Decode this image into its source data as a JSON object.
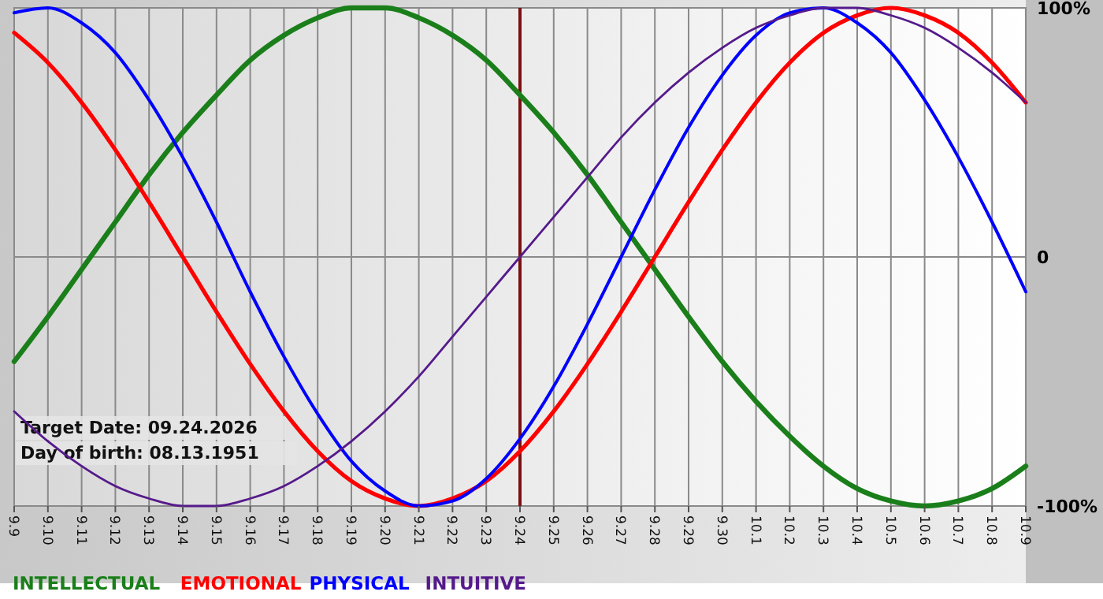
{
  "chart_data": {
    "type": "line",
    "categories": [
      "9.9",
      "9.10",
      "9.11",
      "9.12",
      "9.13",
      "9.14",
      "9.15",
      "9.16",
      "9.17",
      "9.18",
      "9.19",
      "9.20",
      "9.21",
      "9.22",
      "9.23",
      "9.24",
      "9.25",
      "9.26",
      "9.27",
      "9.28",
      "9.29",
      "9.30",
      "10.1",
      "10.2",
      "10.3",
      "10.4",
      "10.5",
      "10.6",
      "10.7",
      "10.8",
      "10.9"
    ],
    "series": [
      {
        "name": "INTELLECTUAL",
        "color": "#1a7f1a",
        "values": [
          -42,
          -24,
          -5,
          14,
          33,
          50,
          65,
          79,
          89,
          96,
          100,
          100,
          96,
          89,
          79,
          65,
          50,
          33,
          14,
          -5,
          -24,
          -42,
          -58,
          -72,
          -84,
          -93,
          -98,
          -100,
          -98,
          -93,
          -84
        ]
      },
      {
        "name": "EMOTIONAL",
        "color": "#ff0000",
        "values": [
          90,
          78,
          62,
          43,
          22,
          0,
          -22,
          -43,
          -62,
          -78,
          -90,
          -97,
          -100,
          -97,
          -90,
          -78,
          -62,
          -43,
          -22,
          0,
          22,
          43,
          62,
          78,
          90,
          97,
          100,
          97,
          90,
          78,
          62
        ]
      },
      {
        "name": "PHYSICAL",
        "color": "#0000ff",
        "values": [
          98,
          100,
          94,
          82,
          63,
          40,
          14,
          -14,
          -40,
          -63,
          -82,
          -94,
          -100,
          -98,
          -89,
          -73,
          -52,
          -27,
          0,
          27,
          52,
          73,
          89,
          98,
          100,
          94,
          82,
          63,
          40,
          14,
          -14
        ]
      },
      {
        "name": "INTUITIVE",
        "color": "#551a8b",
        "values": [
          -62,
          -74,
          -84,
          -92,
          -97,
          -100,
          -100,
          -97,
          -92,
          -84,
          -74,
          -62,
          -48,
          -32,
          -16,
          0,
          16,
          32,
          48,
          62,
          74,
          84,
          92,
          97,
          100,
          100,
          97,
          92,
          84,
          74,
          62
        ]
      }
    ],
    "ylim": [
      -100,
      100
    ],
    "yticks": [
      {
        "value": 100,
        "label": "100%"
      },
      0,
      {
        "value": -100,
        "label": "-100%"
      }
    ],
    "grid": true,
    "legend": "bottom left",
    "marker": "none",
    "line_style": "solid",
    "ref_lines": [
      {
        "axis": "x",
        "value": "9.24",
        "color": "#7a1010"
      }
    ],
    "annotations": [
      "Target Date: 09.24.2026",
      "Day of birth: 08.13.1951"
    ]
  }
}
